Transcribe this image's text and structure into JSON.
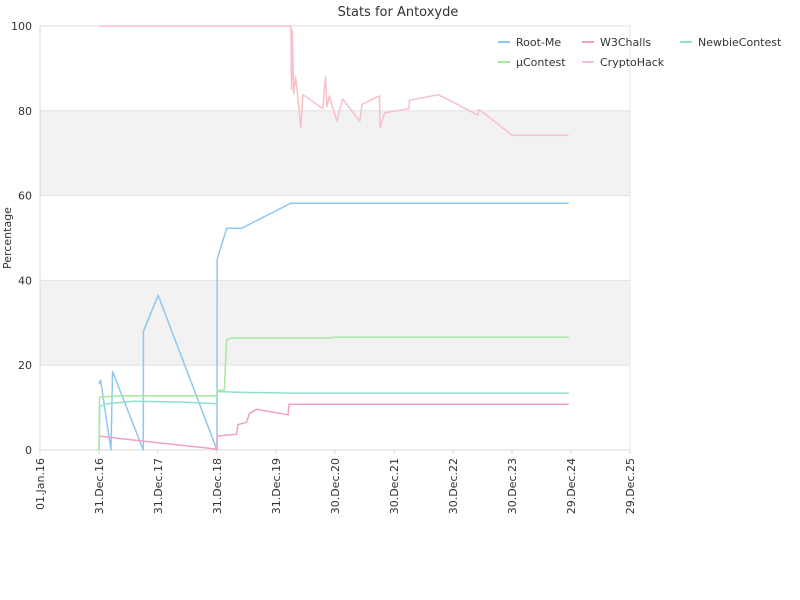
{
  "chart_data": {
    "type": "line",
    "title": "Stats for Antoxyde",
    "xlabel": "",
    "ylabel": "Percentage",
    "ylim": [
      0,
      100
    ],
    "y_ticks": [
      0,
      20,
      40,
      60,
      80,
      100
    ],
    "x_ticks": [
      "01.Jan.16",
      "31.Dec.16",
      "31.Dec.17",
      "31.Dec.18",
      "31.Dec.19",
      "30.Dec.20",
      "30.Dec.21",
      "30.Dec.22",
      "30.Dec.23",
      "29.Dec.24",
      "29.Dec.25"
    ],
    "x_domain": [
      "2016-01-01",
      "2025-12-29"
    ],
    "grid": "horizontal",
    "alternating_bands": true,
    "legend_position": "top-right",
    "colors": {
      "Root-Me": "#8ec8f0",
      "W3Challs": "#f0a0c8",
      "NewbieContest": "#8ee0d0",
      "µContest": "#a8e8a0",
      "CryptoHack": "#f8c0c8"
    },
    "legend": [
      "Root-Me",
      "W3Challs",
      "NewbieContest",
      "µContest",
      "CryptoHack"
    ],
    "series": [
      {
        "name": "Root-Me",
        "points": [
          [
            "2016-12-31",
            15.5
          ],
          [
            "2017-01-10",
            16.5
          ],
          [
            "2017-03-15",
            0
          ],
          [
            "2017-03-25",
            18.5
          ],
          [
            "2017-10-01",
            0
          ],
          [
            "2017-10-02",
            28
          ],
          [
            "2018-01-01",
            36.5
          ],
          [
            "2018-12-31",
            0
          ],
          [
            "2019-01-01",
            45
          ],
          [
            "2019-03-01",
            52.3
          ],
          [
            "2019-06-01",
            52.3
          ],
          [
            "2020-04-01",
            58.2
          ],
          [
            "2024-12-15",
            58.2
          ]
        ]
      },
      {
        "name": "W3Challs",
        "points": [
          [
            "2016-12-31",
            3.3
          ],
          [
            "2017-06-01",
            2.6
          ],
          [
            "2018-12-31",
            0.2
          ],
          [
            "2019-01-01",
            3.3
          ],
          [
            "2019-05-01",
            3.7
          ],
          [
            "2019-05-10",
            6.0
          ],
          [
            "2019-07-01",
            6.5
          ],
          [
            "2019-07-20",
            8.6
          ],
          [
            "2019-09-01",
            9.6
          ],
          [
            "2020-03-15",
            8.3
          ],
          [
            "2020-03-20",
            10.8
          ],
          [
            "2024-12-15",
            10.8
          ]
        ]
      },
      {
        "name": "NewbieContest",
        "points": [
          [
            "2016-12-31",
            0
          ],
          [
            "2017-01-05",
            10.3
          ],
          [
            "2017-02-15",
            10.9
          ],
          [
            "2017-08-01",
            11.5
          ],
          [
            "2018-06-01",
            11.3
          ],
          [
            "2018-12-31",
            10.9
          ],
          [
            "2019-01-01",
            13.8
          ],
          [
            "2019-06-01",
            13.6
          ],
          [
            "2020-04-01",
            13.4
          ],
          [
            "2024-12-15",
            13.4
          ]
        ]
      },
      {
        "name": "µContest",
        "points": [
          [
            "2016-12-31",
            0
          ],
          [
            "2017-01-03",
            12.5
          ],
          [
            "2017-06-01",
            12.8
          ],
          [
            "2018-12-31",
            12.8
          ],
          [
            "2019-01-01",
            14.0
          ],
          [
            "2019-02-15",
            14.2
          ],
          [
            "2019-02-20",
            19.0
          ],
          [
            "2019-03-01",
            26.0
          ],
          [
            "2019-04-01",
            26.4
          ],
          [
            "2020-12-01",
            26.4
          ],
          [
            "2020-12-20",
            26.6
          ],
          [
            "2024-12-15",
            26.6
          ]
        ]
      },
      {
        "name": "CryptoHack",
        "points": [
          [
            "2016-12-31",
            100
          ],
          [
            "2020-04-01",
            100
          ],
          [
            "2020-04-05",
            85
          ],
          [
            "2020-04-10",
            99
          ],
          [
            "2020-04-18",
            84
          ],
          [
            "2020-05-01",
            88
          ],
          [
            "2020-06-01",
            76
          ],
          [
            "2020-06-15",
            83.8
          ],
          [
            "2020-10-15",
            80.5
          ],
          [
            "2020-11-01",
            88
          ],
          [
            "2020-11-10",
            81
          ],
          [
            "2020-11-25",
            83.5
          ],
          [
            "2021-01-10",
            77.5
          ],
          [
            "2021-02-15",
            82.8
          ],
          [
            "2021-06-01",
            77.5
          ],
          [
            "2021-06-15",
            81.5
          ],
          [
            "2021-10-01",
            83.5
          ],
          [
            "2021-10-05",
            76
          ],
          [
            "2021-11-01",
            79.5
          ],
          [
            "2022-04-01",
            80.5
          ],
          [
            "2022-04-05",
            82.5
          ],
          [
            "2022-10-01",
            83.8
          ],
          [
            "2023-06-01",
            79
          ],
          [
            "2023-06-10",
            80.3
          ],
          [
            "2024-01-01",
            74.2
          ],
          [
            "2024-12-15",
            74.2
          ]
        ]
      }
    ]
  }
}
